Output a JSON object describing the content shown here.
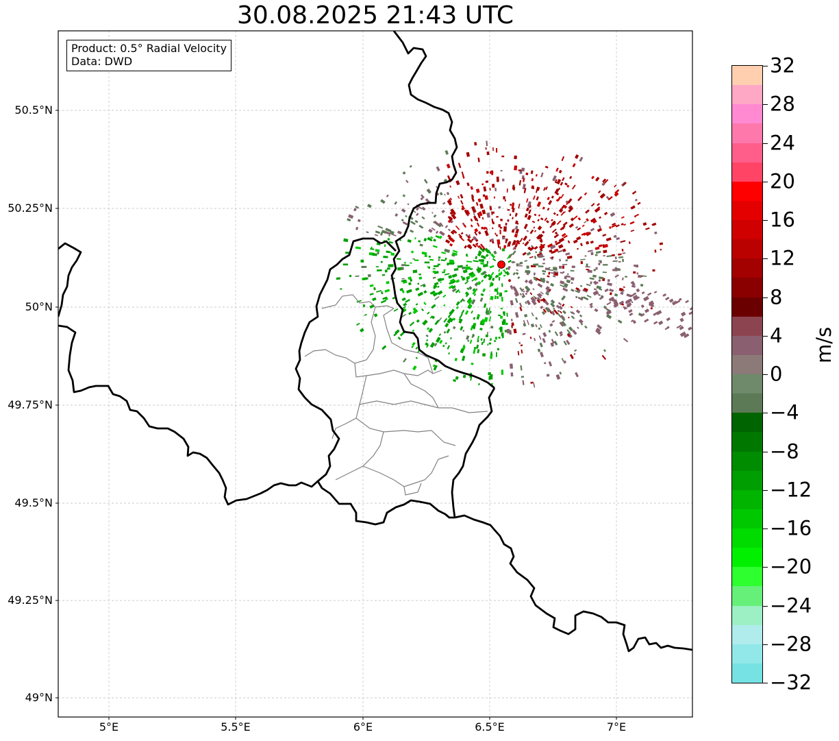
{
  "title": "30.08.2025 21:43 UTC",
  "info": {
    "product_line": "Product: 0.5° Radial Velocity",
    "data_line": "Data: DWD"
  },
  "lat_labels": [
    "50.5°N",
    "50.25°N",
    "50°N",
    "49.75°N",
    "49.5°N",
    "49.25°N",
    "49°N"
  ],
  "lon_labels": [
    "5°E",
    "5.5°E",
    "6°E",
    "6.5°E",
    "7°E"
  ],
  "colorbar": {
    "unit": "m/s",
    "tick_labels": [
      "32",
      "28",
      "24",
      "20",
      "16",
      "12",
      "8",
      "4",
      "0",
      "−4",
      "−8",
      "−12",
      "−16",
      "−20",
      "−24",
      "−28",
      "−32"
    ],
    "colors_top_to_bottom": [
      "#ffcfb0",
      "#ffa8c6",
      "#ff8ad2",
      "#ff78ac",
      "#ff5e8a",
      "#ff4466",
      "#ff0000",
      "#e50000",
      "#d00000",
      "#bb0000",
      "#a30000",
      "#8a0000",
      "#6b0000",
      "#8c4550",
      "#8a6070",
      "#8c7a78",
      "#6e8a6a",
      "#5c7a56",
      "#006400",
      "#007800",
      "#008c00",
      "#009e00",
      "#00b400",
      "#00c800",
      "#00dc00",
      "#00f000",
      "#2eff2e",
      "#66f07a",
      "#9cf0c4",
      "#b0ecec",
      "#92e8e8",
      "#76e2e4"
    ]
  },
  "map": {
    "radar_site_color": "#ff0000",
    "border_color": "#000000",
    "district_color": "#808080",
    "velocity_colors": {
      "outbound_dark": "#a30000",
      "outbound_mid": "#c80000",
      "near_zero_pink": "#8a6070",
      "near_zero_green": "#5c7a56",
      "inbound": "#00a000",
      "inbound_bright": "#00c800"
    }
  }
}
